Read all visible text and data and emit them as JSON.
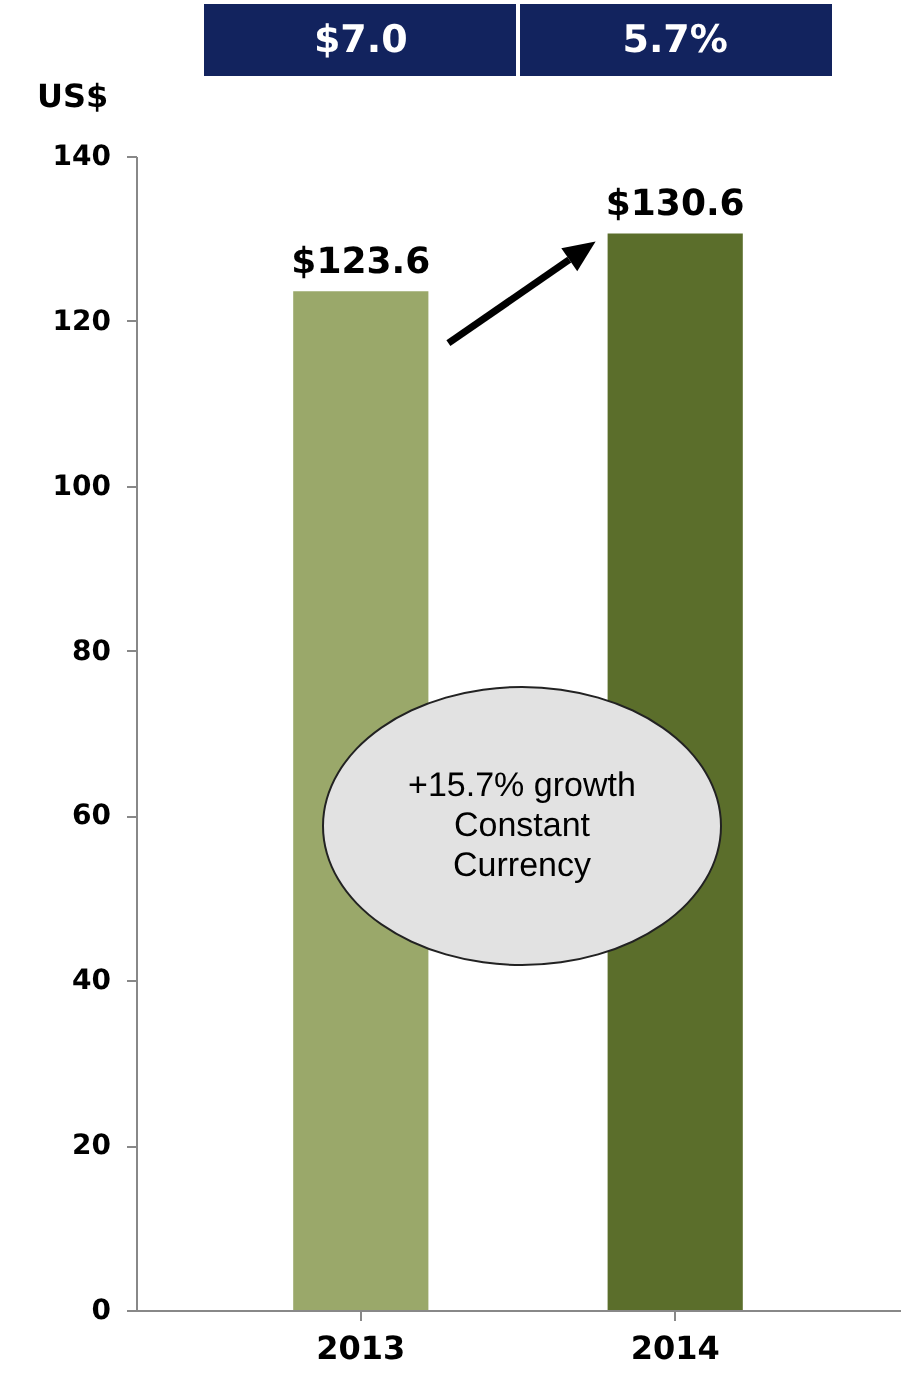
{
  "chart_data": {
    "type": "bar",
    "ylabel": "US$",
    "categories": [
      "2013",
      "2014"
    ],
    "values": [
      123.6,
      130.6
    ],
    "value_labels": [
      "$123.6",
      "$130.6"
    ],
    "colors": [
      "#9aa86a",
      "#5b6e2b"
    ],
    "ylim": [
      0,
      140
    ],
    "yticks": [
      0,
      20,
      40,
      60,
      80,
      100,
      120,
      140
    ],
    "grid": false,
    "legend": false,
    "annotations": [
      "$7.0",
      "5.7%",
      "+15.7% growth Constant Currency"
    ]
  }
}
